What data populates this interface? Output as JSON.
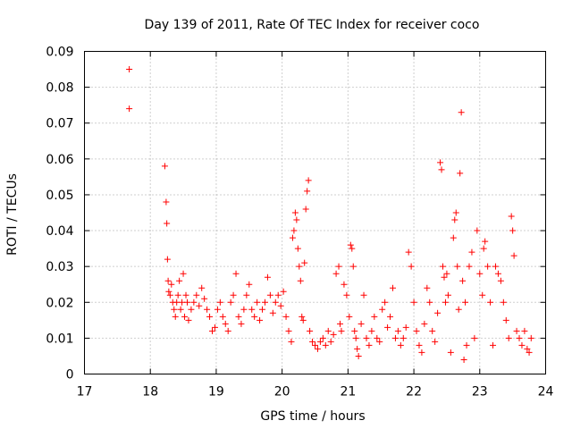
{
  "chart_data": {
    "type": "scatter",
    "title": "Day 139 of 2011, Rate Of TEC Index for receiver coco",
    "xlabel": "GPS time / hours",
    "ylabel": "ROTI / TECUs",
    "xlim": [
      17,
      24
    ],
    "ylim": [
      0,
      0.09
    ],
    "xticks": [
      "17",
      "18",
      "19",
      "20",
      "21",
      "22",
      "23",
      "24"
    ],
    "yticks": [
      "0",
      "0.01",
      "0.02",
      "0.03",
      "0.04",
      "0.05",
      "0.06",
      "0.07",
      "0.08",
      "0.09"
    ],
    "grid": true,
    "marker": "plus",
    "color": "#ff0000",
    "series": [
      {
        "x": [
          17.68,
          17.68,
          18.22,
          18.24,
          18.25,
          18.26,
          18.27,
          18.28,
          18.3,
          18.32,
          18.34,
          18.36,
          18.38,
          18.4,
          18.42,
          18.44,
          18.46,
          18.48,
          18.5,
          18.52,
          18.54,
          18.56,
          18.58,
          18.62,
          18.66,
          18.7,
          18.74,
          18.78,
          18.82,
          18.86,
          18.9,
          18.94,
          18.98,
          19.02,
          19.06,
          19.1,
          19.14,
          19.18,
          19.22,
          19.26,
          19.3,
          19.34,
          19.38,
          19.42,
          19.46,
          19.5,
          19.54,
          19.58,
          19.62,
          19.66,
          19.7,
          19.74,
          19.78,
          19.82,
          19.86,
          19.9,
          19.94,
          19.98,
          20.02,
          20.06,
          20.1,
          20.14,
          20.16,
          20.18,
          20.2,
          20.22,
          20.24,
          20.26,
          20.28,
          20.3,
          20.32,
          20.34,
          20.36,
          20.38,
          20.4,
          20.42,
          20.46,
          20.5,
          20.54,
          20.58,
          20.62,
          20.66,
          20.7,
          20.74,
          20.78,
          20.82,
          20.86,
          20.88,
          20.9,
          20.94,
          20.98,
          21.02,
          21.04,
          21.06,
          21.08,
          21.1,
          21.12,
          21.14,
          21.16,
          21.2,
          21.24,
          21.28,
          21.32,
          21.36,
          21.4,
          21.44,
          21.48,
          21.52,
          21.56,
          21.6,
          21.64,
          21.68,
          21.72,
          21.76,
          21.8,
          21.84,
          21.88,
          21.92,
          21.96,
          22.0,
          22.04,
          22.08,
          22.12,
          22.16,
          22.2,
          22.24,
          22.28,
          22.32,
          22.36,
          22.4,
          22.42,
          22.44,
          22.46,
          22.48,
          22.5,
          22.52,
          22.56,
          22.6,
          22.62,
          22.64,
          22.66,
          22.68,
          22.7,
          22.72,
          22.74,
          22.76,
          22.78,
          22.8,
          22.84,
          22.88,
          22.92,
          22.96,
          23.0,
          23.04,
          23.06,
          23.08,
          23.12,
          23.16,
          23.2,
          23.24,
          23.28,
          23.32,
          23.36,
          23.4,
          23.44,
          23.48,
          23.5,
          23.52,
          23.56,
          23.6,
          23.64,
          23.68,
          23.72,
          23.75,
          23.78
        ],
        "y": [
          0.085,
          0.074,
          0.058,
          0.048,
          0.042,
          0.032,
          0.026,
          0.023,
          0.022,
          0.025,
          0.02,
          0.018,
          0.016,
          0.02,
          0.022,
          0.026,
          0.018,
          0.02,
          0.028,
          0.016,
          0.022,
          0.02,
          0.015,
          0.018,
          0.02,
          0.022,
          0.019,
          0.024,
          0.021,
          0.018,
          0.016,
          0.012,
          0.013,
          0.018,
          0.02,
          0.016,
          0.014,
          0.012,
          0.02,
          0.022,
          0.028,
          0.016,
          0.014,
          0.018,
          0.022,
          0.025,
          0.018,
          0.016,
          0.02,
          0.015,
          0.018,
          0.02,
          0.027,
          0.022,
          0.017,
          0.02,
          0.022,
          0.019,
          0.023,
          0.016,
          0.012,
          0.009,
          0.038,
          0.04,
          0.045,
          0.043,
          0.035,
          0.03,
          0.026,
          0.016,
          0.015,
          0.031,
          0.046,
          0.051,
          0.054,
          0.012,
          0.009,
          0.008,
          0.007,
          0.009,
          0.01,
          0.008,
          0.012,
          0.009,
          0.011,
          0.028,
          0.03,
          0.014,
          0.012,
          0.025,
          0.022,
          0.016,
          0.036,
          0.035,
          0.03,
          0.012,
          0.01,
          0.007,
          0.005,
          0.014,
          0.022,
          0.01,
          0.008,
          0.012,
          0.016,
          0.01,
          0.009,
          0.018,
          0.02,
          0.013,
          0.016,
          0.024,
          0.01,
          0.012,
          0.008,
          0.01,
          0.013,
          0.034,
          0.03,
          0.02,
          0.012,
          0.008,
          0.006,
          0.014,
          0.024,
          0.02,
          0.012,
          0.009,
          0.017,
          0.059,
          0.057,
          0.03,
          0.027,
          0.02,
          0.028,
          0.022,
          0.006,
          0.038,
          0.043,
          0.045,
          0.03,
          0.018,
          0.056,
          0.073,
          0.026,
          0.004,
          0.02,
          0.008,
          0.03,
          0.034,
          0.01,
          0.04,
          0.028,
          0.022,
          0.035,
          0.037,
          0.03,
          0.02,
          0.008,
          0.03,
          0.028,
          0.026,
          0.02,
          0.015,
          0.01,
          0.044,
          0.04,
          0.033,
          0.012,
          0.01,
          0.008,
          0.012,
          0.007,
          0.006,
          0.01
        ]
      }
    ]
  }
}
